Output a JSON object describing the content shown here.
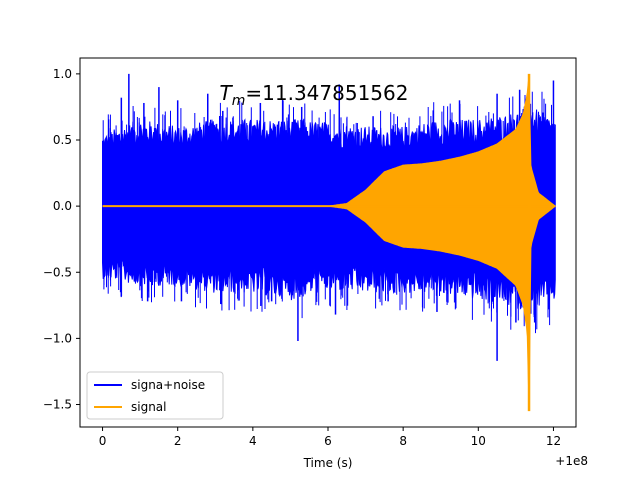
{
  "chart_data": {
    "type": "line",
    "title_prefix": "T",
    "title_subscript": "m",
    "title_value": "=11.347851562",
    "xlabel": "Time (s)",
    "ylabel": "",
    "x_offset_label": "+1e8",
    "xlim": [
      -0.6,
      12.6
    ],
    "ylim": [
      -1.67,
      1.12
    ],
    "x_ticks": [
      0,
      2,
      4,
      6,
      8,
      10,
      12
    ],
    "x_tick_labels": [
      "0",
      "2",
      "4",
      "6",
      "8",
      "10",
      "12"
    ],
    "y_ticks": [
      1.0,
      0.5,
      0.0,
      -0.5,
      -1.0,
      -1.5
    ],
    "y_tick_labels": [
      "1.0",
      "0.5",
      "0.0",
      "−0.5",
      "−1.0",
      "−1.5"
    ],
    "grid": false,
    "legend_position": "lower-left",
    "series": [
      {
        "name": "signa+noise",
        "color": "#0000ff",
        "x_range": [
          0,
          12.05
        ],
        "envelope_upper": [
          [
            0,
            0.5
          ],
          [
            1,
            0.6
          ],
          [
            2,
            0.55
          ],
          [
            3,
            0.6
          ],
          [
            4,
            0.6
          ],
          [
            5,
            0.6
          ],
          [
            6,
            0.58
          ],
          [
            7,
            0.55
          ],
          [
            8,
            0.55
          ],
          [
            9,
            0.6
          ],
          [
            10,
            0.6
          ],
          [
            11,
            0.65
          ],
          [
            11.3,
            0.7
          ],
          [
            12.05,
            0.6
          ]
        ],
        "envelope_lower": [
          [
            0,
            -0.5
          ],
          [
            1,
            -0.55
          ],
          [
            2,
            -0.55
          ],
          [
            3,
            -0.6
          ],
          [
            4,
            -0.6
          ],
          [
            5,
            -0.65
          ],
          [
            6,
            -0.58
          ],
          [
            7,
            -0.6
          ],
          [
            8,
            -0.6
          ],
          [
            9,
            -0.6
          ],
          [
            10,
            -0.65
          ],
          [
            11,
            -0.7
          ],
          [
            11.3,
            -0.75
          ],
          [
            12.05,
            -0.65
          ]
        ],
        "spikes": [
          [
            0.7,
            1.0
          ],
          [
            0.5,
            0.82
          ],
          [
            1.1,
            0.78
          ],
          [
            1.5,
            0.9
          ],
          [
            2.0,
            0.8
          ],
          [
            2.8,
            0.85
          ],
          [
            3.2,
            0.72
          ],
          [
            4.2,
            0.78
          ],
          [
            4.8,
            0.8
          ],
          [
            5.3,
            0.75
          ],
          [
            6.3,
            0.92
          ],
          [
            7.2,
            0.68
          ],
          [
            9.5,
            0.8
          ],
          [
            10.5,
            0.85
          ],
          [
            11.1,
            0.88
          ],
          [
            12.0,
            0.95
          ],
          [
            0.5,
            -0.68
          ],
          [
            1.2,
            -0.72
          ],
          [
            2.1,
            -0.72
          ],
          [
            3.6,
            -0.7
          ],
          [
            4.5,
            -0.72
          ],
          [
            5.2,
            -1.02
          ],
          [
            6.2,
            -0.82
          ],
          [
            7.6,
            -0.72
          ],
          [
            8.9,
            -0.8
          ],
          [
            10.5,
            -1.17
          ],
          [
            11.0,
            -0.88
          ],
          [
            11.5,
            -0.88
          ]
        ]
      },
      {
        "name": "signal",
        "color": "#ffa500",
        "x_range": [
          0,
          12.05
        ],
        "envelope_upper": [
          [
            0,
            0.0
          ],
          [
            6,
            0.0
          ],
          [
            6.5,
            0.02
          ],
          [
            7,
            0.12
          ],
          [
            7.5,
            0.26
          ],
          [
            8,
            0.31
          ],
          [
            8.5,
            0.32
          ],
          [
            9,
            0.34
          ],
          [
            9.5,
            0.37
          ],
          [
            10,
            0.41
          ],
          [
            10.5,
            0.47
          ],
          [
            11,
            0.58
          ],
          [
            11.2,
            0.7
          ],
          [
            11.3,
            0.85
          ],
          [
            11.35,
            1.0
          ],
          [
            11.4,
            0.3
          ],
          [
            11.6,
            0.1
          ],
          [
            12.05,
            0.0
          ]
        ],
        "envelope_lower": [
          [
            0,
            0.0
          ],
          [
            6,
            0.0
          ],
          [
            6.5,
            -0.02
          ],
          [
            7,
            -0.12
          ],
          [
            7.5,
            -0.26
          ],
          [
            8,
            -0.31
          ],
          [
            8.5,
            -0.32
          ],
          [
            9,
            -0.34
          ],
          [
            9.5,
            -0.37
          ],
          [
            10,
            -0.41
          ],
          [
            10.5,
            -0.47
          ],
          [
            11,
            -0.6
          ],
          [
            11.2,
            -0.75
          ],
          [
            11.3,
            -0.95
          ],
          [
            11.35,
            -1.55
          ],
          [
            11.4,
            -0.3
          ],
          [
            11.6,
            -0.1
          ],
          [
            12.05,
            0.0
          ]
        ]
      }
    ]
  }
}
